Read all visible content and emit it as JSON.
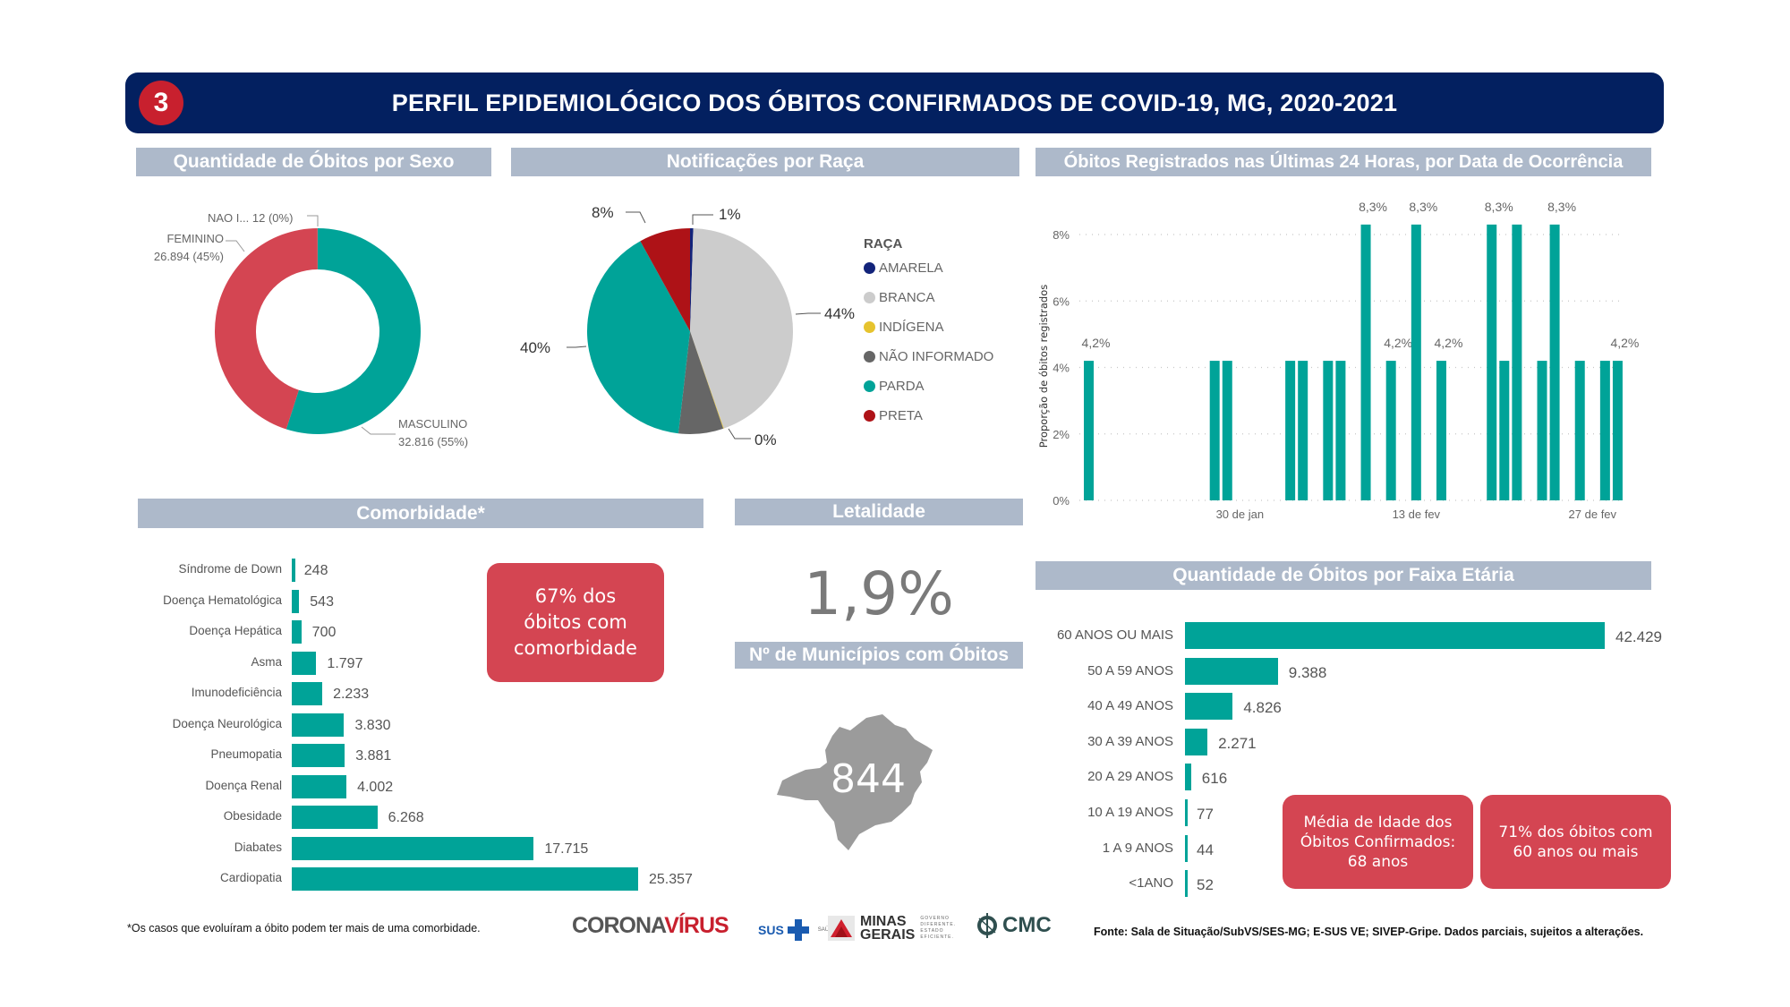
{
  "header": {
    "section_number": "3",
    "title": "PERFIL EPIDEMIOLÓGICO DOS ÓBITOS CONFIRMADOS DE COVID-19, MG, 2020-2021"
  },
  "sections": {
    "sexo": "Quantidade de Óbitos por Sexo",
    "raca": "Notificações por Raça",
    "ultimas24h": "Óbitos Registrados nas Últimas 24 Horas, por Data de Ocorrência",
    "comorbidade": "Comorbidade*",
    "letalidade": "Letalidade",
    "municipios": "Nº de Municípios com Óbitos",
    "faixa": "Quantidade de Óbitos por Faixa Etária"
  },
  "colors": {
    "teal": "#00A398",
    "red_box": "#D44552",
    "header_navy": "#032060",
    "section_gray": "#ADB9CA"
  },
  "chart_data": [
    {
      "id": "sexo",
      "type": "pie",
      "subtype": "donut",
      "title": "Quantidade de Óbitos por Sexo",
      "slices": [
        {
          "name": "MASCULINO",
          "value": 32816,
          "value_label": "32.816",
          "pct_label": "(55%)",
          "color": "#00A398"
        },
        {
          "name": "FEMININO",
          "value": 26894,
          "value_label": "26.894",
          "pct_label": "(45%)",
          "color": "#D44552"
        },
        {
          "name": "NAO I...",
          "value": 12,
          "value_label": "12",
          "pct_label": "(0%)",
          "color": "#888888"
        }
      ]
    },
    {
      "id": "raca",
      "type": "pie",
      "title": "Notificações por Raça",
      "legend_title": "RAÇA",
      "legend_position": "right",
      "slices": [
        {
          "name": "AMARELA",
          "pct": 0.5,
          "label": "1%",
          "color": "#12237A"
        },
        {
          "name": "BRANCA",
          "pct": 44,
          "label": "44%",
          "color": "#CCCCCC"
        },
        {
          "name": "INDÍGENA",
          "pct": 0.1,
          "label": "0%",
          "color": "#E6C32E"
        },
        {
          "name": "NÃO INFORMADO",
          "pct": 7,
          "label": "",
          "color": "#666666"
        },
        {
          "name": "PARDA",
          "pct": 40,
          "label": "40%",
          "color": "#00A398"
        },
        {
          "name": "PRETA",
          "pct": 8,
          "label": "8%",
          "color": "#AE1217"
        }
      ]
    },
    {
      "id": "ultimas24h",
      "type": "bar",
      "title": "Óbitos Registrados nas Últimas 24 Horas, por Data de Ocorrência",
      "xlabel": "",
      "ylabel": "Proporção de óbitos registrados",
      "ylim": [
        0,
        8.3
      ],
      "yticks": [
        0,
        2,
        4,
        6,
        8
      ],
      "ytick_labels": [
        "0%",
        "2%",
        "4%",
        "6%",
        "8%"
      ],
      "grid": true,
      "x_day_range": [
        0,
        42
      ],
      "xtick_days": [
        12,
        26,
        40
      ],
      "xtick_labels": [
        "30 de jan",
        "13 de fev",
        "27 de fev"
      ],
      "bars": [
        {
          "day": 0,
          "date": "18 de jan",
          "value": 4.2,
          "label": "4,2%"
        },
        {
          "day": 10,
          "date": "28 de jan",
          "value": 4.2,
          "label": ""
        },
        {
          "day": 11,
          "date": "29 de jan",
          "value": 4.2,
          "label": ""
        },
        {
          "day": 16,
          "date": "3 de fev",
          "value": 4.2,
          "label": ""
        },
        {
          "day": 17,
          "date": "4 de fev",
          "value": 4.2,
          "label": ""
        },
        {
          "day": 19,
          "date": "6 de fev",
          "value": 4.2,
          "label": ""
        },
        {
          "day": 20,
          "date": "7 de fev",
          "value": 4.2,
          "label": ""
        },
        {
          "day": 22,
          "date": "9 de fev",
          "value": 8.3,
          "label": "8,3%"
        },
        {
          "day": 24,
          "date": "11 de fev",
          "value": 4.2,
          "label": "4,2%"
        },
        {
          "day": 26,
          "date": "13 de fev",
          "value": 8.3,
          "label": "8,3%"
        },
        {
          "day": 28,
          "date": "15 de fev",
          "value": 4.2,
          "label": "4,2%"
        },
        {
          "day": 32,
          "date": "19 de fev",
          "value": 8.3,
          "label": "8,3%"
        },
        {
          "day": 33,
          "date": "20 de fev",
          "value": 4.2,
          "label": ""
        },
        {
          "day": 34,
          "date": "21 de fev",
          "value": 8.3,
          "label": ""
        },
        {
          "day": 36,
          "date": "23 de fev",
          "value": 4.2,
          "label": ""
        },
        {
          "day": 37,
          "date": "24 de fev",
          "value": 8.3,
          "label": "8,3%"
        },
        {
          "day": 39,
          "date": "26 de fev",
          "value": 4.2,
          "label": ""
        },
        {
          "day": 41,
          "date": "28 de fev",
          "value": 4.2,
          "label": ""
        },
        {
          "day": 42,
          "date": "1 de mar",
          "value": 4.2,
          "label": "4,2%"
        }
      ]
    },
    {
      "id": "comorbidade",
      "type": "bar",
      "orientation": "horizontal",
      "title": "Comorbidade*",
      "categories": [
        "Síndrome de Down",
        "Doença Hematológica",
        "Doença Hepática",
        "Asma",
        "Imunodeficiência",
        "Doença Neurológica",
        "Pneumopatia",
        "Doença Renal",
        "Obesidade",
        "Diabates",
        "Cardiopatia"
      ],
      "values": [
        248,
        543,
        700,
        1797,
        2233,
        3830,
        3881,
        4002,
        6268,
        17715,
        25357
      ],
      "value_labels": [
        "248",
        "543",
        "700",
        "1.797",
        "2.233",
        "3.830",
        "3.881",
        "4.002",
        "6.268",
        "17.715",
        "25.357"
      ],
      "xlim": [
        0,
        25357
      ]
    },
    {
      "id": "faixa",
      "type": "bar",
      "orientation": "horizontal",
      "title": "Quantidade de Óbitos por Faixa Etária",
      "categories": [
        "60 ANOS OU MAIS",
        "50 A 59 ANOS",
        "40 A 49 ANOS",
        "30 A 39 ANOS",
        "20 A 29 ANOS",
        "10 A 19 ANOS",
        "1 A 9 ANOS",
        "<1ANO"
      ],
      "values": [
        42429,
        9388,
        4826,
        2271,
        616,
        77,
        44,
        52
      ],
      "value_labels": [
        "42.429",
        "9.388",
        "4.826",
        "2.271",
        "616",
        "77",
        "44",
        "52"
      ],
      "xlim": [
        0,
        42429
      ]
    }
  ],
  "kpis": {
    "comorbidade_box": [
      "67% dos",
      "óbitos com",
      "comorbidade"
    ],
    "letalidade": "1,9%",
    "municipios": "844",
    "media_idade_box": [
      "Média de Idade dos",
      "Óbitos Confirmados:",
      "68 anos"
    ],
    "idosos_box": [
      "71% dos óbitos com",
      "60 anos ou mais"
    ]
  },
  "footer": {
    "note": "*Os casos que evoluíram a óbito podem ter mais de uma comorbidade.",
    "logo_corona_1": "CORONA",
    "logo_corona_2": "VÍRUS",
    "logo_sus": "SUS",
    "logo_saude": "SAÚDE",
    "logo_mg_1": "MINAS",
    "logo_mg_2": "GERAIS",
    "logo_mg_tag": [
      "GOVERNO",
      "DIFERENTE.",
      "ESTADO",
      "EFICIENTE."
    ],
    "logo_cmc": "CMC",
    "source": "Fonte: Sala de Situação/SubVS/SES-MG; E-SUS VE; SIVEP-Gripe. Dados parciais, sujeitos a alterações."
  }
}
